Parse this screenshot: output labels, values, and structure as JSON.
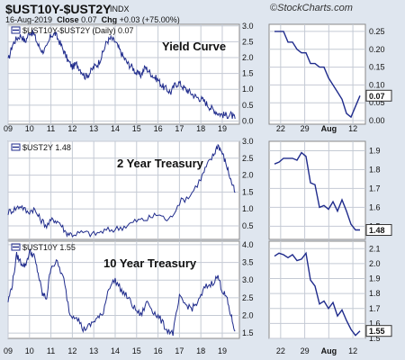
{
  "header": {
    "symbol": "$UST10Y-$UST2Y",
    "exchange": "INDX",
    "brand": "StockCharts.com",
    "copyright_sign": "©",
    "date": "16-Aug-2019",
    "close_label": "Close",
    "close_value": "0.07",
    "chg_label": "Chg",
    "chg_value": "+0.03 (+75.00%)"
  },
  "colors": {
    "background": "#dfe6ef",
    "panel": "#ffffff",
    "line": "#1f2b8c",
    "grid": "#c4cad4",
    "box": "#ffffff"
  },
  "chart_data": [
    {
      "type": "line",
      "title": "Yield Curve",
      "legend": "$UST10Y-$UST2Y (Daily) 0.07",
      "x_ticks": [
        "09",
        "10",
        "11",
        "12",
        "13",
        "14",
        "15",
        "16",
        "17",
        "18",
        "19"
      ],
      "yticks": [
        "0.0",
        "0.5",
        "1.0",
        "1.5",
        "2.0",
        "2.5",
        "3.0"
      ],
      "ylim": [
        -0.1,
        3.05
      ],
      "series": [
        {
          "x": [
            2009.0,
            2009.2,
            2009.4,
            2009.6,
            2009.8,
            2010.0,
            2010.2,
            2010.4,
            2010.6,
            2010.8,
            2011.0,
            2011.2,
            2011.4,
            2011.6,
            2011.8,
            2012.0,
            2012.2,
            2012.4,
            2012.6,
            2012.8,
            2013.0,
            2013.2,
            2013.4,
            2013.6,
            2013.8,
            2014.0,
            2014.2,
            2014.4,
            2014.6,
            2014.8,
            2015.0,
            2015.2,
            2015.4,
            2015.6,
            2015.8,
            2016.0,
            2016.2,
            2016.4,
            2016.6,
            2016.8,
            2017.0,
            2017.2,
            2017.4,
            2017.6,
            2017.8,
            2018.0,
            2018.2,
            2018.4,
            2018.6,
            2018.8,
            2019.0,
            2019.2,
            2019.4,
            2019.6
          ],
          "y": [
            1.9,
            2.4,
            2.6,
            2.7,
            2.5,
            2.8,
            2.75,
            2.4,
            2.2,
            2.3,
            2.7,
            2.75,
            2.5,
            2.2,
            1.9,
            1.7,
            1.8,
            1.6,
            1.4,
            1.5,
            1.7,
            1.8,
            2.1,
            2.5,
            2.6,
            2.5,
            2.25,
            2.0,
            1.8,
            1.7,
            1.5,
            1.45,
            1.7,
            1.55,
            1.4,
            1.3,
            1.1,
            1.0,
            0.9,
            1.15,
            1.2,
            1.05,
            0.95,
            0.85,
            0.75,
            0.7,
            0.6,
            0.45,
            0.35,
            0.25,
            0.2,
            0.18,
            0.2,
            0.07
          ]
        }
      ],
      "zoom": {
        "x_ticks": [
          "22",
          "29",
          "Aug",
          "12"
        ],
        "yticks": [
          "0.00",
          "0.05",
          "0.10",
          "0.15",
          "0.20",
          "0.25"
        ],
        "ylim": [
          -0.01,
          0.27
        ],
        "last_label": "0.07",
        "values": [
          0.25,
          0.25,
          0.25,
          0.22,
          0.22,
          0.2,
          0.19,
          0.19,
          0.16,
          0.16,
          0.15,
          0.15,
          0.12,
          0.1,
          0.08,
          0.06,
          0.02,
          0.01,
          0.04,
          0.07
        ]
      }
    },
    {
      "type": "line",
      "title": "2 Year Treasury",
      "legend": "$UST2Y 1.48",
      "x_ticks": [
        "09",
        "10",
        "11",
        "12",
        "13",
        "14",
        "15",
        "16",
        "17",
        "18",
        "19"
      ],
      "yticks": [
        "0.5",
        "1.0",
        "1.5",
        "2.0",
        "2.5",
        "3.0"
      ],
      "ylim": [
        0.1,
        3.0
      ],
      "series": [
        {
          "x": [
            2009.0,
            2009.3,
            2009.6,
            2009.9,
            2010.2,
            2010.5,
            2010.8,
            2011.1,
            2011.4,
            2011.7,
            2012.0,
            2012.5,
            2013.0,
            2013.5,
            2014.0,
            2014.5,
            2015.0,
            2015.5,
            2016.0,
            2016.5,
            2017.0,
            2017.5,
            2018.0,
            2018.3,
            2018.6,
            2018.8,
            2019.0,
            2019.2,
            2019.4,
            2019.6
          ],
          "y": [
            0.9,
            1.0,
            1.1,
            0.9,
            1.0,
            0.7,
            0.5,
            0.7,
            0.6,
            0.3,
            0.25,
            0.3,
            0.25,
            0.35,
            0.4,
            0.5,
            0.65,
            0.7,
            0.85,
            0.65,
            1.2,
            1.4,
            1.9,
            2.3,
            2.6,
            2.9,
            2.65,
            2.3,
            1.85,
            1.48
          ]
        }
      ],
      "zoom": {
        "yticks": [
          "1.5",
          "1.6",
          "1.7",
          "1.8",
          "1.9"
        ],
        "ylim": [
          1.43,
          1.95
        ],
        "last_label": "1.48",
        "values": [
          1.83,
          1.84,
          1.86,
          1.86,
          1.86,
          1.85,
          1.89,
          1.87,
          1.73,
          1.72,
          1.6,
          1.61,
          1.59,
          1.63,
          1.58,
          1.64,
          1.58,
          1.51,
          1.48,
          1.48
        ]
      }
    },
    {
      "type": "line",
      "title": "10 Year Treasury",
      "legend": "$UST10Y 1.55",
      "x_ticks": [
        "09",
        "10",
        "11",
        "12",
        "13",
        "14",
        "15",
        "16",
        "17",
        "18",
        "19"
      ],
      "yticks": [
        "1.5",
        "2.0",
        "2.5",
        "3.0",
        "3.5",
        "4.0"
      ],
      "ylim": [
        1.35,
        4.1
      ],
      "series": [
        {
          "x": [
            2009.0,
            2009.2,
            2009.4,
            2009.6,
            2009.8,
            2010.0,
            2010.2,
            2010.4,
            2010.6,
            2010.8,
            2011.0,
            2011.3,
            2011.6,
            2011.9,
            2012.2,
            2012.5,
            2012.8,
            2013.1,
            2013.4,
            2013.7,
            2014.0,
            2014.3,
            2014.6,
            2014.9,
            2015.2,
            2015.5,
            2015.8,
            2016.1,
            2016.4,
            2016.7,
            2017.0,
            2017.3,
            2017.6,
            2017.9,
            2018.2,
            2018.5,
            2018.8,
            2019.0,
            2019.2,
            2019.4,
            2019.6
          ],
          "y": [
            2.4,
            2.9,
            3.7,
            3.5,
            3.4,
            3.8,
            3.7,
            3.2,
            2.6,
            2.5,
            3.4,
            3.5,
            3.0,
            2.0,
            2.0,
            1.6,
            1.7,
            1.9,
            2.0,
            2.8,
            3.0,
            2.7,
            2.5,
            2.2,
            2.0,
            2.4,
            2.1,
            1.9,
            1.6,
            1.5,
            2.5,
            2.3,
            2.2,
            2.4,
            2.8,
            2.9,
            3.1,
            2.7,
            2.5,
            2.0,
            1.55
          ]
        }
      ],
      "zoom": {
        "yticks": [
          "1.5",
          "1.6",
          "1.7",
          "1.8",
          "1.9",
          "2.0",
          "2.1"
        ],
        "ylim": [
          1.5,
          2.15
        ],
        "last_label": "1.55",
        "values": [
          2.05,
          2.07,
          2.06,
          2.04,
          2.06,
          2.02,
          2.03,
          2.07,
          1.89,
          1.85,
          1.73,
          1.75,
          1.7,
          1.74,
          1.65,
          1.69,
          1.62,
          1.56,
          1.52,
          1.55
        ]
      }
    }
  ]
}
